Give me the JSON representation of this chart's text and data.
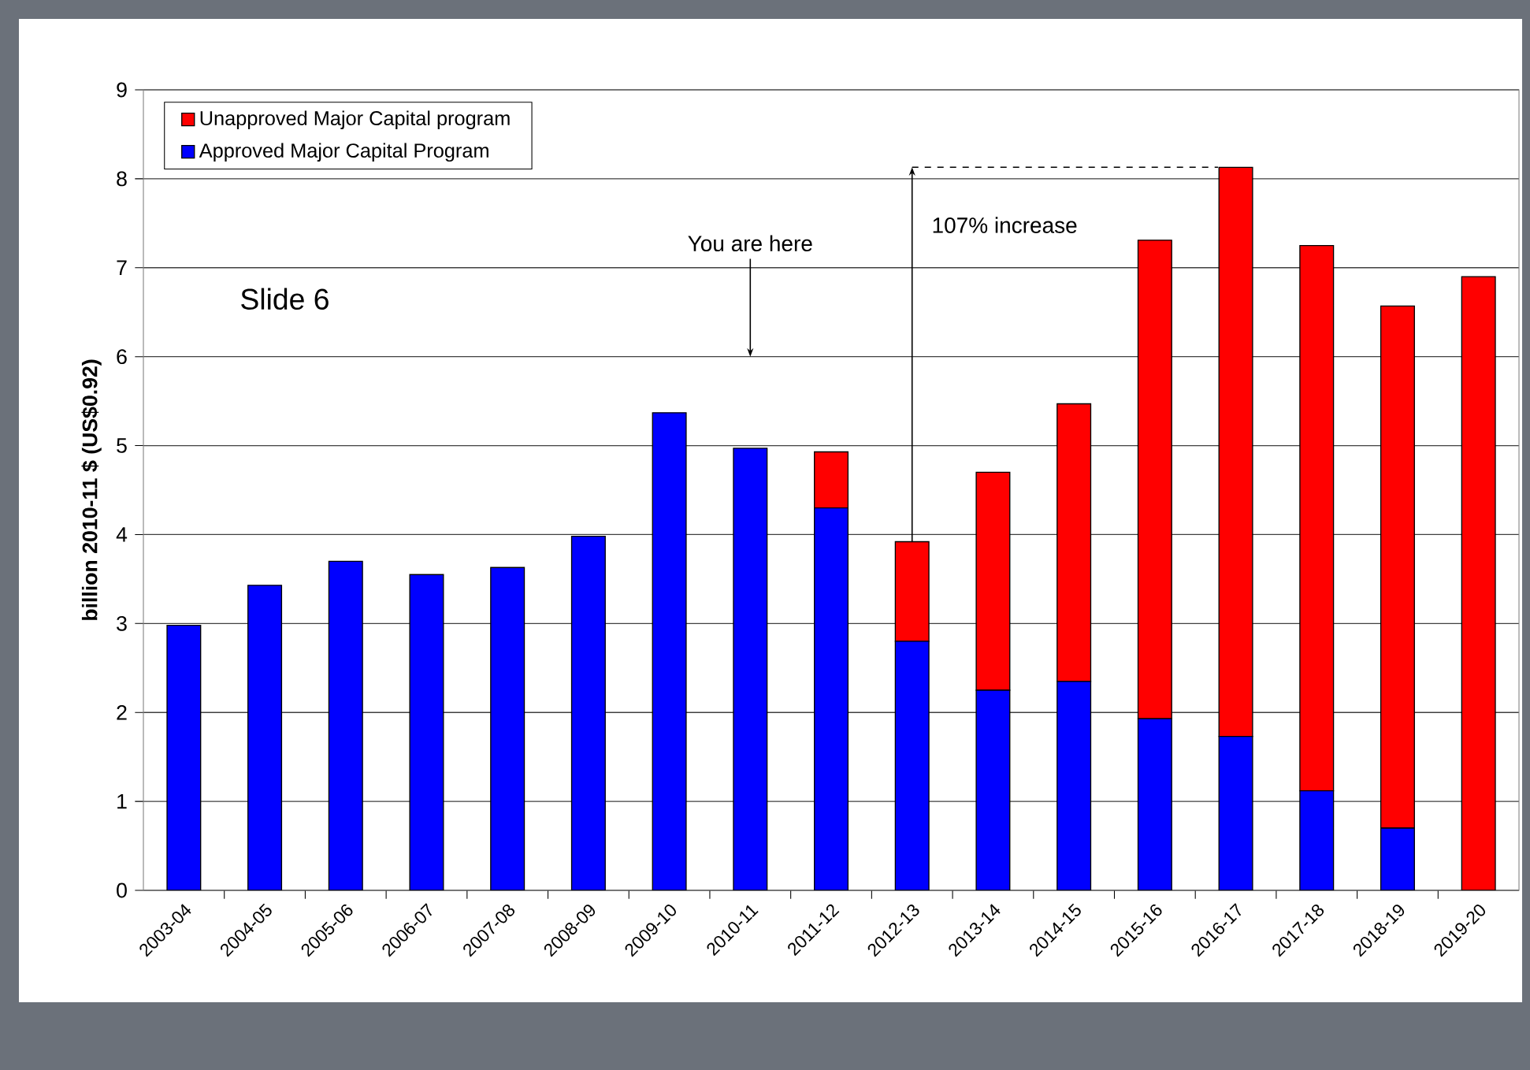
{
  "chart_data": {
    "type": "bar",
    "stacked": true,
    "ylabel": "billion 2010-11 $ (US$0.92)",
    "categories": [
      "2003-04",
      "2004-05",
      "2005-06",
      "2006-07",
      "2007-08",
      "2008-09",
      "2009-10",
      "2010-11",
      "2011-12",
      "2012-13",
      "2013-14",
      "2014-15",
      "2015-16",
      "2016-17",
      "2017-18",
      "2018-19",
      "2019-20"
    ],
    "series": [
      {
        "name": "Approved Major Capital Program",
        "color": "#0000ff",
        "values": [
          2.98,
          3.43,
          3.7,
          3.55,
          3.63,
          3.98,
          5.37,
          4.97,
          4.3,
          2.8,
          2.25,
          2.35,
          1.93,
          1.73,
          1.12,
          0.7,
          0
        ]
      },
      {
        "name": "Unapproved Major Capital program",
        "color": "#ff0000",
        "values": [
          null,
          null,
          null,
          null,
          null,
          null,
          null,
          null,
          0.63,
          1.12,
          2.45,
          3.12,
          5.38,
          6.4,
          6.13,
          5.87,
          6.9
        ]
      }
    ],
    "ylim": [
      0,
      9
    ],
    "yticks": [
      0,
      1,
      2,
      3,
      4,
      5,
      6,
      7,
      8,
      9
    ],
    "grid": "y",
    "legend": "top left",
    "annotations": [
      "Slide 6",
      "You are here",
      "107% increase"
    ]
  }
}
